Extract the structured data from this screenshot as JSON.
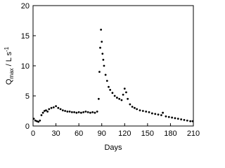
{
  "chart_data": {
    "type": "scatter",
    "xlabel": "Days",
    "ylabel": {
      "main": "Q",
      "sub": "max",
      "rest": " / L s",
      "sup": "-1"
    },
    "x": [
      1,
      3,
      5,
      7,
      9,
      11,
      13,
      15,
      17,
      19,
      21,
      24,
      27,
      30,
      33,
      36,
      39,
      42,
      45,
      48,
      51,
      54,
      57,
      60,
      63,
      66,
      69,
      72,
      75,
      78,
      81,
      84,
      86,
      87,
      88,
      89,
      90,
      91,
      92,
      93,
      95,
      97,
      99,
      101,
      104,
      107,
      110,
      113,
      116,
      118,
      120,
      122,
      124,
      127,
      130,
      133,
      136,
      140,
      144,
      148,
      152,
      156,
      160,
      164,
      168,
      170,
      174,
      178,
      182,
      186,
      190,
      194,
      198,
      202,
      206,
      209
    ],
    "values": [
      1.2,
      0.9,
      0.8,
      0.7,
      0.9,
      1.8,
      2.2,
      2.5,
      2.6,
      2.4,
      2.8,
      3.0,
      3.1,
      3.3,
      3.0,
      2.8,
      2.6,
      2.5,
      2.4,
      2.4,
      2.3,
      2.3,
      2.2,
      2.3,
      2.2,
      2.3,
      2.4,
      2.3,
      2.2,
      2.3,
      2.2,
      2.4,
      4.5,
      9,
      13,
      16,
      14,
      12,
      11,
      10,
      8.5,
      7.5,
      6.5,
      6,
      5.5,
      5,
      4.7,
      4.5,
      4.3,
      5.2,
      6.2,
      5.6,
      4.5,
      3.6,
      3.2,
      3.0,
      2.8,
      2.6,
      2.5,
      2.4,
      2.3,
      2.1,
      2.0,
      1.9,
      1.8,
      2.2,
      1.6,
      1.5,
      1.4,
      1.3,
      1.2,
      1.1,
      1.0,
      0.9,
      0.8,
      0.8
    ],
    "color": "#000000",
    "xlim": [
      0,
      210
    ],
    "xticks": [
      0,
      30,
      60,
      90,
      120,
      150,
      180,
      210
    ],
    "ylim": [
      0,
      20
    ],
    "yticks": [
      0,
      5,
      10,
      15,
      20
    ]
  }
}
